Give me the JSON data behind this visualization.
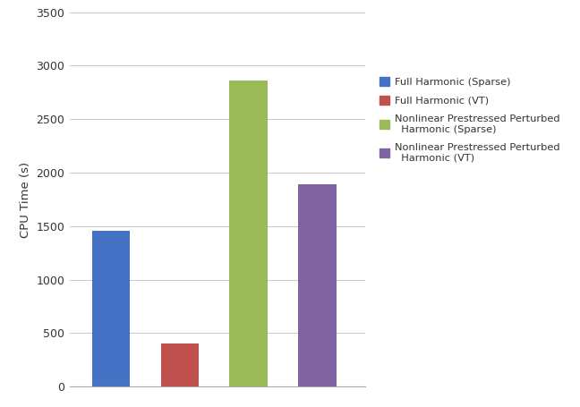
{
  "bars": [
    {
      "label": "Full Harmonic (Sparse)",
      "value": 1455,
      "color": "#4472c4",
      "x": 1
    },
    {
      "label": "Full Harmonic (VT)",
      "value": 400,
      "color": "#c0504d",
      "x": 2
    },
    {
      "label": "Nonlinear Prestressed Perturbed\nHarmonic (Sparse)",
      "value": 2860,
      "color": "#9bbb59",
      "x": 3
    },
    {
      "label": "Nonlinear Prestressed Perturbed\nHarmonic (VT)",
      "value": 1890,
      "color": "#8064a2",
      "x": 4
    }
  ],
  "ylabel": "CPU Time (s)",
  "ylim": [
    0,
    3500
  ],
  "yticks": [
    0,
    500,
    1000,
    1500,
    2000,
    2500,
    3000,
    3500
  ],
  "bar_width": 0.55,
  "background_color": "#ffffff",
  "grid_color": "#c8c8c8",
  "legend_labels": [
    "Full Harmonic (Sparse)",
    "Full Harmonic (VT)",
    "Nonlinear Prestressed Perturbed\n  Harmonic (Sparse)",
    "Nonlinear Prestressed Perturbed\n  Harmonic (VT)"
  ],
  "legend_colors": [
    "#4472c4",
    "#c0504d",
    "#9bbb59",
    "#8064a2"
  ]
}
